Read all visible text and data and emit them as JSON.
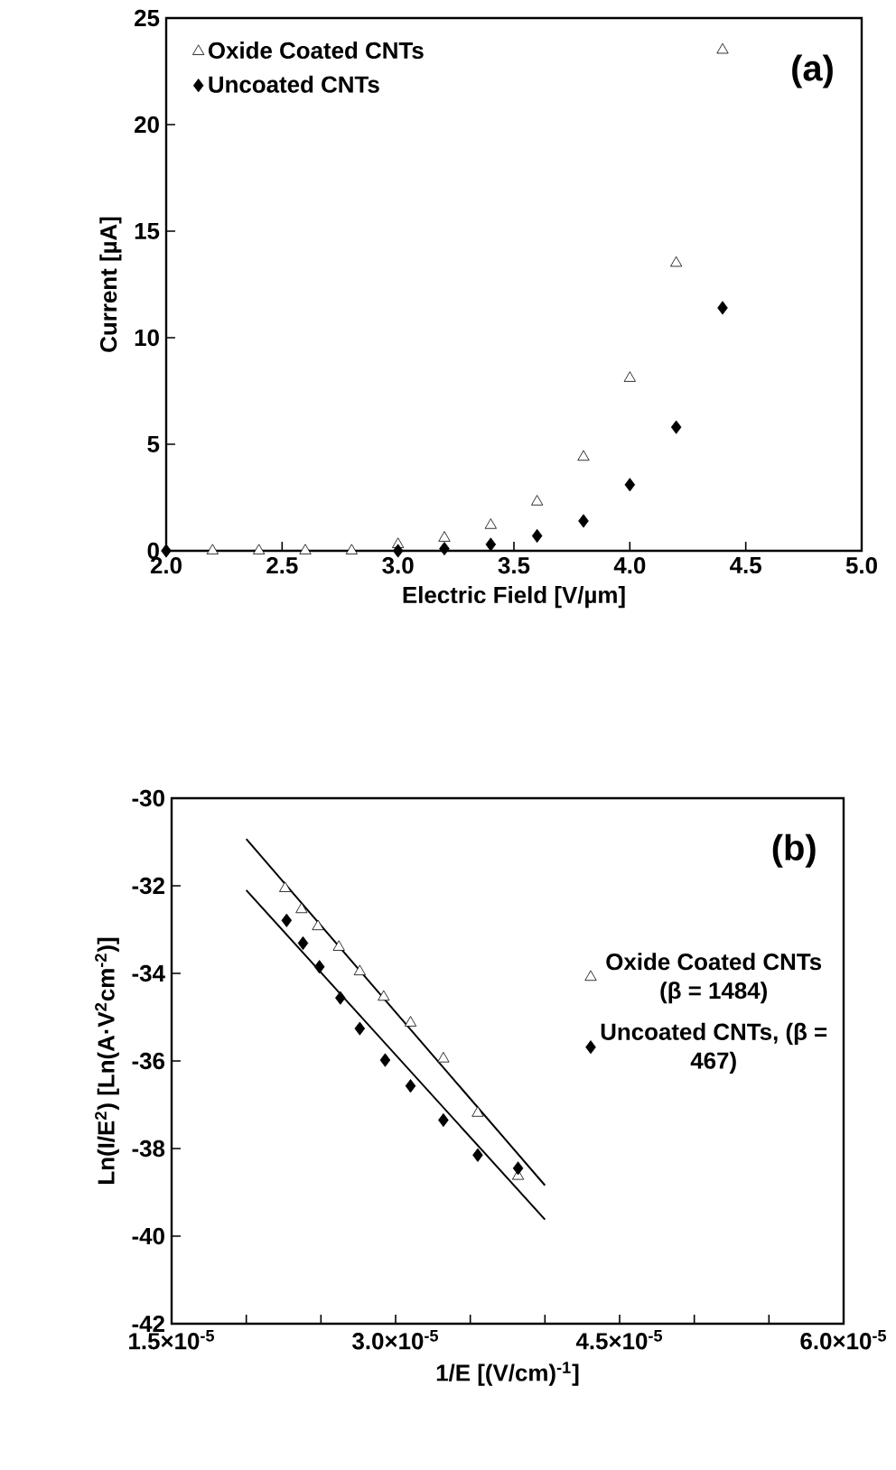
{
  "chart_data": [
    {
      "type": "scatter",
      "xlabel": "Electric Field [V/µm]",
      "ylabel": "Current [µA]",
      "annotations": [
        "(a)"
      ],
      "legend": "top left",
      "grid": false,
      "xlim": [
        2,
        5
      ],
      "ylim": [
        0,
        25
      ],
      "xticks": [
        {
          "value": 2,
          "label": "2.0"
        },
        {
          "value": 2.5,
          "label": "2.5"
        },
        {
          "value": 3,
          "label": "3.0"
        },
        {
          "value": 3.5,
          "label": "3.5"
        },
        {
          "value": 4,
          "label": "4.0"
        },
        {
          "value": 4.5,
          "label": "4.5"
        },
        {
          "value": 5,
          "label": "5.0"
        }
      ],
      "yticks": [
        0,
        5,
        10,
        15,
        20,
        25
      ],
      "series": [
        {
          "name": "Oxide Coated CNTs",
          "color": "#000000",
          "marker": "triangle",
          "x": [
            2.2,
            2.4,
            2.6,
            2.8,
            3.0,
            3.2,
            3.4,
            3.6,
            3.8,
            4.0,
            4.2,
            4.4
          ],
          "values": [
            0,
            0,
            0,
            0,
            0.3,
            0.6,
            1.2,
            2.3,
            4.4,
            8.1,
            13.5,
            23.5
          ]
        },
        {
          "name": "Uncoated CNTs",
          "color": "#000000",
          "marker": "diamond",
          "x": [
            2.0,
            3.0,
            3.2,
            3.4,
            3.6,
            3.8,
            4.0,
            4.2,
            4.4
          ],
          "values": [
            0,
            0,
            0.1,
            0.3,
            0.7,
            1.4,
            3.1,
            5.8,
            11.4
          ]
        }
      ]
    },
    {
      "type": "scatter",
      "xlabel": "1/E [(V/cm)$^{-1}$]",
      "ylabel": "Ln(I/E$^{2}$) [Ln(A·V$^{2}$cm$^{-2}$)]",
      "annotations": [
        "(b)"
      ],
      "legend": "right",
      "grid": false,
      "xlim": [
        1.5e-05,
        6e-05
      ],
      "ylim": [
        -42,
        -30
      ],
      "xticks": [
        {
          "value": 1.5e-05,
          "label": "1.5×10$^{-5}$"
        },
        {
          "value": 2e-05,
          "label": null
        },
        {
          "value": 2.5e-05,
          "label": null
        },
        {
          "value": 3e-05,
          "label": "3.0×10$^{-5}$"
        },
        {
          "value": 3.5e-05,
          "label": null
        },
        {
          "value": 4e-05,
          "label": null
        },
        {
          "value": 4.5e-05,
          "label": "4.5×10$^{-5}$"
        },
        {
          "value": 5e-05,
          "label": null
        },
        {
          "value": 5.5e-05,
          "label": null
        },
        {
          "value": 6e-05,
          "label": "6.0×10$^{-5}$"
        }
      ],
      "yticks": [
        -42,
        -40,
        -38,
        -36,
        -34,
        -32,
        -30
      ],
      "series": [
        {
          "name": "Oxide Coated CNTs (β = 1484)",
          "color": "#000000",
          "marker": "triangle",
          "x": [
            2.26e-05,
            2.37e-05,
            2.48e-05,
            2.62e-05,
            2.76e-05,
            2.92e-05,
            3.1e-05,
            3.32e-05,
            3.55e-05,
            3.82e-05
          ],
          "values": [
            -32.06,
            -32.54,
            -32.93,
            -33.4,
            -33.96,
            -34.54,
            -35.13,
            -35.95,
            -37.19,
            -38.63
          ]
        },
        {
          "name": "Uncoated CNTs, (β = 467)",
          "color": "#000000",
          "marker": "diamond",
          "x": [
            2.27e-05,
            2.38e-05,
            2.49e-05,
            2.63e-05,
            2.76e-05,
            2.93e-05,
            3.1e-05,
            3.32e-05,
            3.55e-05,
            3.82e-05
          ],
          "values": [
            -32.79,
            -33.31,
            -33.85,
            -34.56,
            -35.26,
            -35.98,
            -36.57,
            -37.35,
            -38.15,
            -38.45
          ]
        },
        {
          "type": "line",
          "color": "#000000",
          "marker": "none",
          "line_style": "solid",
          "x": [
            2e-05,
            4e-05
          ],
          "values": [
            -30.93,
            -38.84
          ]
        },
        {
          "type": "line",
          "color": "#000000",
          "marker": "none",
          "line_style": "solid",
          "x": [
            2e-05,
            4e-05
          ],
          "values": [
            -32.1,
            -39.62
          ]
        }
      ]
    }
  ]
}
